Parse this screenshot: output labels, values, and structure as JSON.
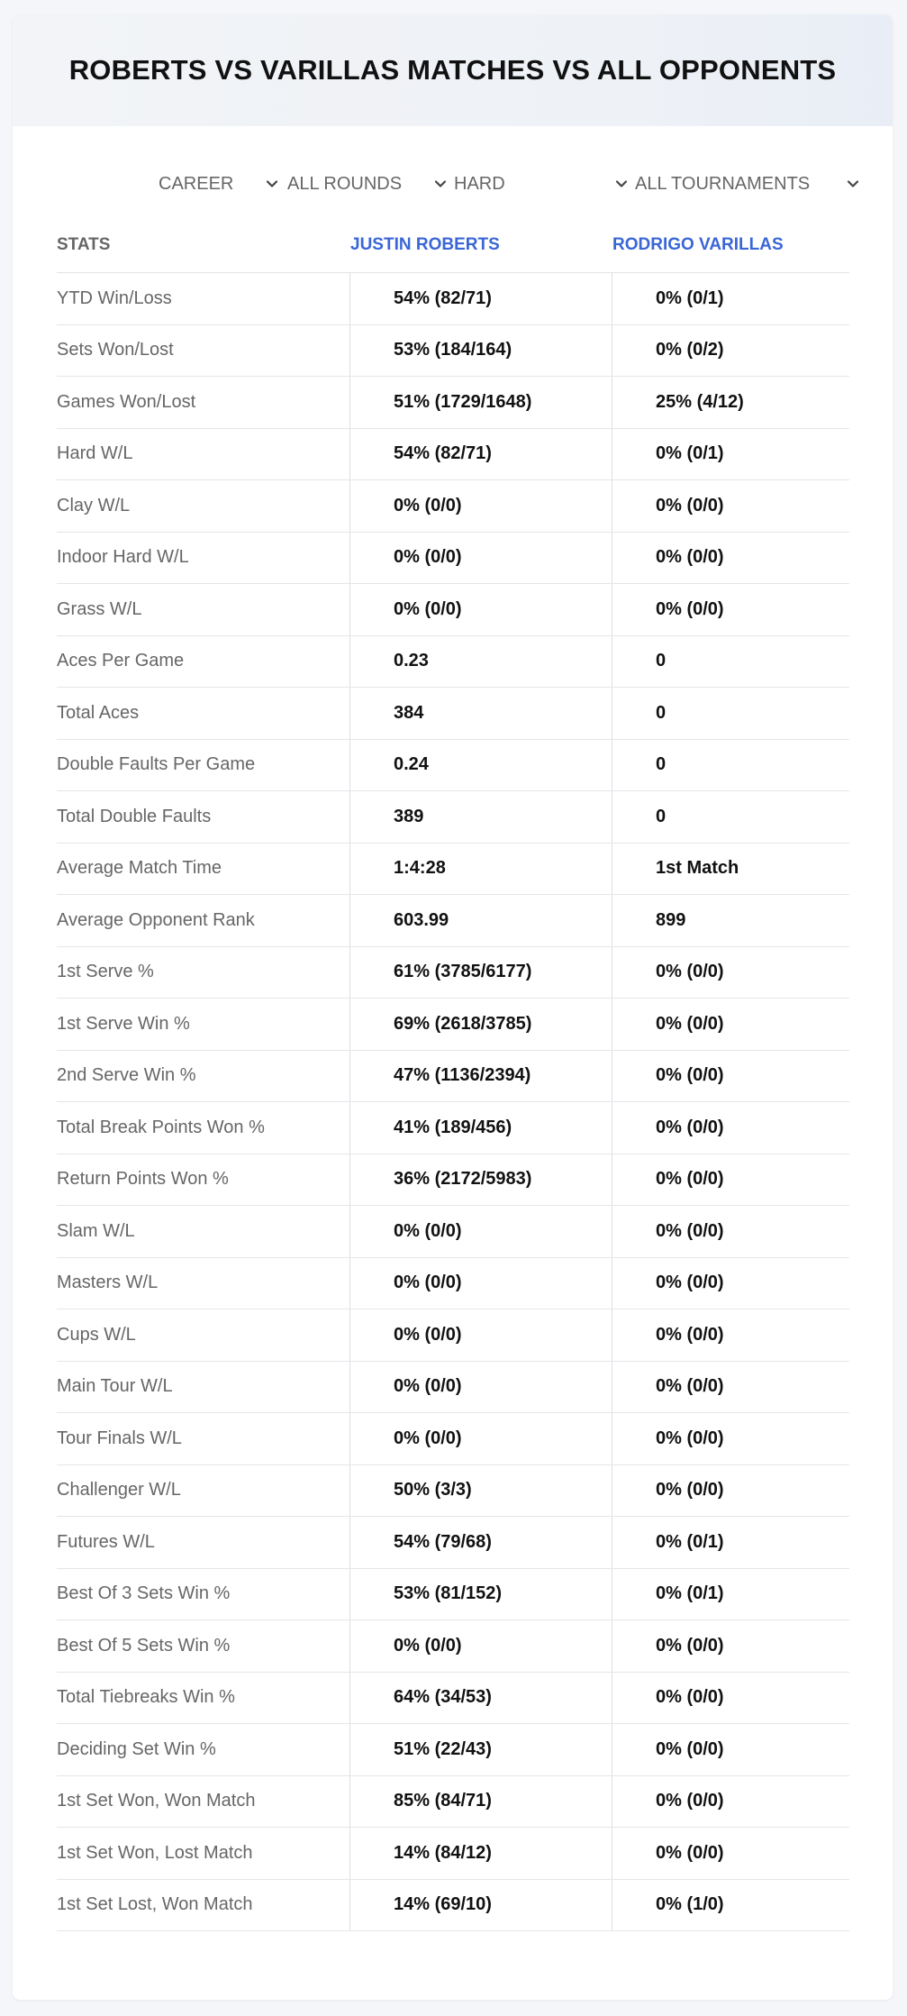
{
  "title": "ROBERTS VS VARILLAS MATCHES VS ALL OPPONENTS",
  "filters": {
    "period": "CAREER",
    "rounds": "ALL ROUNDS",
    "surface": "HARD",
    "tournaments": "ALL TOURNAMENTS"
  },
  "table": {
    "headers": {
      "stats": "STATS",
      "player1": "JUSTIN ROBERTS",
      "player2": "RODRIGO VARILLAS"
    },
    "rows": [
      {
        "label": "YTD Win/Loss",
        "p1": "54% (82/71)",
        "p2": "0% (0/1)"
      },
      {
        "label": "Sets Won/Lost",
        "p1": "53% (184/164)",
        "p2": "0% (0/2)"
      },
      {
        "label": "Games Won/Lost",
        "p1": "51% (1729/1648)",
        "p2": "25% (4/12)"
      },
      {
        "label": "Hard W/L",
        "p1": "54% (82/71)",
        "p2": "0% (0/1)"
      },
      {
        "label": "Clay W/L",
        "p1": "0% (0/0)",
        "p2": "0% (0/0)"
      },
      {
        "label": "Indoor Hard W/L",
        "p1": "0% (0/0)",
        "p2": "0% (0/0)"
      },
      {
        "label": "Grass W/L",
        "p1": "0% (0/0)",
        "p2": "0% (0/0)"
      },
      {
        "label": "Aces Per Game",
        "p1": "0.23",
        "p2": "0"
      },
      {
        "label": "Total Aces",
        "p1": "384",
        "p2": "0"
      },
      {
        "label": "Double Faults Per Game",
        "p1": "0.24",
        "p2": "0"
      },
      {
        "label": "Total Double Faults",
        "p1": "389",
        "p2": "0"
      },
      {
        "label": "Average Match Time",
        "p1": "1:4:28",
        "p2": "1st Match"
      },
      {
        "label": "Average Opponent Rank",
        "p1": "603.99",
        "p2": "899"
      },
      {
        "label": "1st Serve %",
        "p1": "61% (3785/6177)",
        "p2": "0% (0/0)"
      },
      {
        "label": "1st Serve Win %",
        "p1": "69% (2618/3785)",
        "p2": "0% (0/0)"
      },
      {
        "label": "2nd Serve Win %",
        "p1": "47% (1136/2394)",
        "p2": "0% (0/0)"
      },
      {
        "label": "Total Break Points Won %",
        "p1": "41% (189/456)",
        "p2": "0% (0/0)"
      },
      {
        "label": "Return Points Won %",
        "p1": "36% (2172/5983)",
        "p2": "0% (0/0)"
      },
      {
        "label": "Slam W/L",
        "p1": "0% (0/0)",
        "p2": "0% (0/0)"
      },
      {
        "label": "Masters W/L",
        "p1": "0% (0/0)",
        "p2": "0% (0/0)"
      },
      {
        "label": "Cups W/L",
        "p1": "0% (0/0)",
        "p2": "0% (0/0)"
      },
      {
        "label": "Main Tour W/L",
        "p1": "0% (0/0)",
        "p2": "0% (0/0)"
      },
      {
        "label": "Tour Finals W/L",
        "p1": "0% (0/0)",
        "p2": "0% (0/0)"
      },
      {
        "label": "Challenger W/L",
        "p1": "50% (3/3)",
        "p2": "0% (0/0)"
      },
      {
        "label": "Futures W/L",
        "p1": "54% (79/68)",
        "p2": "0% (0/1)"
      },
      {
        "label": "Best Of 3 Sets Win %",
        "p1": "53% (81/152)",
        "p2": "0% (0/1)"
      },
      {
        "label": "Best Of 5 Sets Win %",
        "p1": "0% (0/0)",
        "p2": "0% (0/0)"
      },
      {
        "label": "Total Tiebreaks Win %",
        "p1": "64% (34/53)",
        "p2": "0% (0/0)"
      },
      {
        "label": "Deciding Set Win %",
        "p1": "51% (22/43)",
        "p2": "0% (0/0)"
      },
      {
        "label": "1st Set Won, Won Match",
        "p1": "85% (84/71)",
        "p2": "0% (0/0)"
      },
      {
        "label": "1st Set Won, Lost Match",
        "p1": "14% (84/12)",
        "p2": "0% (0/0)"
      },
      {
        "label": "1st Set Lost, Won Match",
        "p1": "14% (69/10)",
        "p2": "0% (1/0)"
      }
    ]
  }
}
